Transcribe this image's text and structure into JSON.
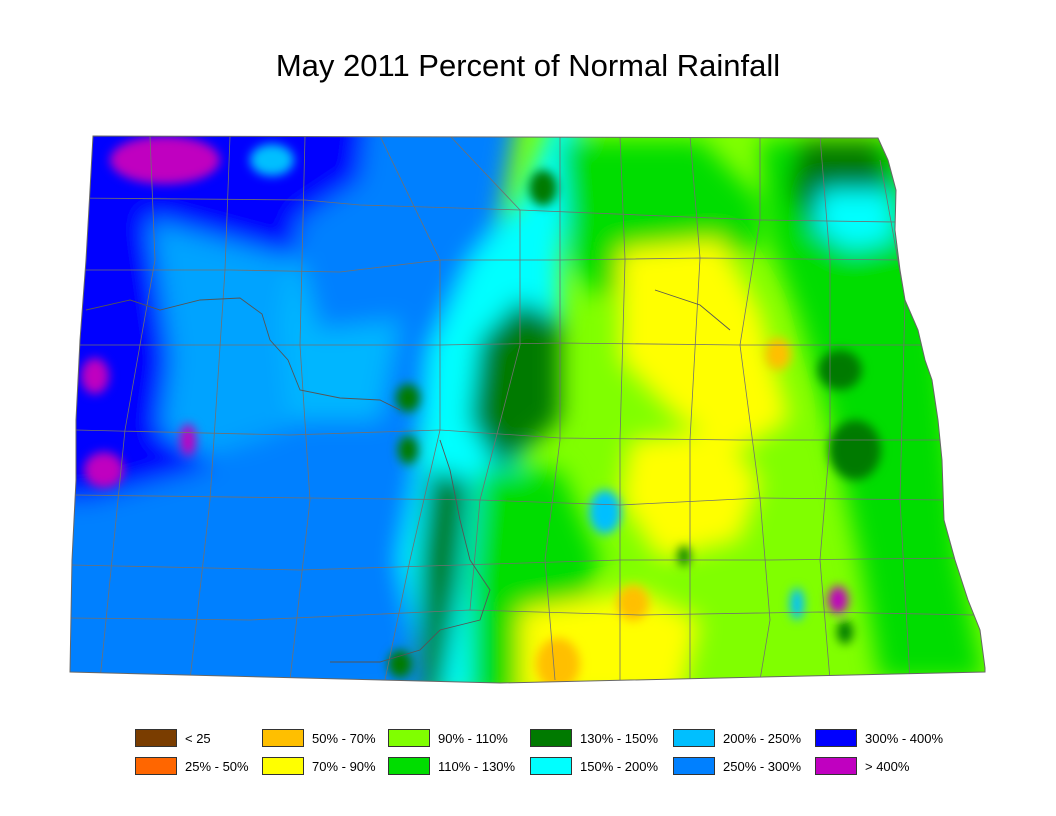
{
  "title": "May 2011 Percent of Normal Rainfall",
  "legend": [
    {
      "label": "< 25",
      "color": "#7a3d00"
    },
    {
      "label": "25% - 50%",
      "color": "#ff6600"
    },
    {
      "label": "50% - 70%",
      "color": "#ffbf00"
    },
    {
      "label": "70% - 90%",
      "color": "#ffff00"
    },
    {
      "label": "90% - 110%",
      "color": "#80ff00"
    },
    {
      "label": "110% - 130%",
      "color": "#00dd00"
    },
    {
      "label": "130% - 150%",
      "color": "#007a00"
    },
    {
      "label": "150% - 200%",
      "color": "#00ffff"
    },
    {
      "label": "200% - 250%",
      "color": "#00bfff"
    },
    {
      "label": "250% - 300%",
      "color": "#0080ff"
    },
    {
      "label": "300% - 400%",
      "color": "#0000ff"
    },
    {
      "label": "> 400%",
      "color": "#c000c0"
    }
  ]
}
